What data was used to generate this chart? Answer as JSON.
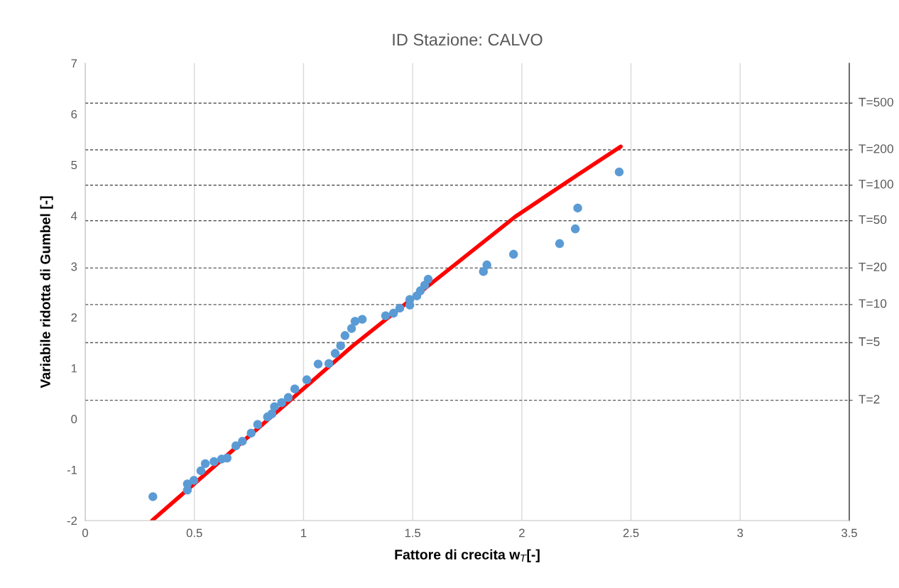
{
  "chart_data": {
    "type": "scatter",
    "title": "ID Stazione: CALVO",
    "xlabel": "Fattore di crecita w$_{T}$[-]",
    "ylabel": "Variabile ridotta di Gumbel [-]",
    "series": [
      {
        "color": "#5b9bd5",
        "marker": "circle",
        "x": [
          0.31,
          0.468,
          0.468,
          0.498,
          0.53,
          0.55,
          0.59,
          0.625,
          0.65,
          0.69,
          0.72,
          0.76,
          0.79,
          0.835,
          0.855,
          0.867,
          0.9,
          0.93,
          0.96,
          1.015,
          1.067,
          1.116,
          1.145,
          1.17,
          1.19,
          1.22,
          1.236,
          1.269,
          1.376,
          1.412,
          1.441,
          1.487,
          1.487,
          1.519,
          1.535,
          1.555,
          1.571,
          1.824,
          1.84,
          1.962,
          2.173,
          2.245,
          2.256,
          2.446
        ],
        "values": [
          -1.53,
          -1.4,
          -1.28,
          -1.21,
          -1.02,
          -0.88,
          -0.84,
          -0.79,
          -0.77,
          -0.53,
          -0.44,
          -0.28,
          -0.11,
          0.04,
          0.1,
          0.24,
          0.32,
          0.42,
          0.59,
          0.77,
          1.08,
          1.09,
          1.29,
          1.44,
          1.64,
          1.78,
          1.92,
          1.96,
          2.03,
          2.08,
          2.18,
          2.24,
          2.35,
          2.42,
          2.52,
          2.63,
          2.75,
          2.9,
          3.03,
          3.24,
          3.45,
          3.74,
          4.15,
          4.86
        ]
      },
      {
        "type": "line",
        "color": "#ff0000",
        "marker": "none",
        "line_style": "solid",
        "x": [
          0.306,
          1.226,
          1.97,
          2.258,
          2.453
        ],
        "values": [
          -2,
          1.44,
          3.98,
          4.81,
          5.36
        ]
      }
    ],
    "xlim": [
      0,
      3.5
    ],
    "xticks": [
      0,
      0.5,
      1,
      1.5,
      2,
      2.5,
      3,
      3.5
    ],
    "ylim": [
      -2,
      7
    ],
    "yticks": [
      -2,
      -1,
      0,
      1,
      2,
      3,
      4,
      5,
      6,
      7
    ],
    "ref_lines": [
      {
        "axis": "y",
        "value": 0.3665,
        "color": "#595959",
        "line_style": "dashed"
      },
      {
        "axis": "y",
        "value": 1.4999,
        "color": "#595959",
        "line_style": "dashed"
      },
      {
        "axis": "y",
        "value": 2.2504,
        "color": "#595959",
        "line_style": "dashed"
      },
      {
        "axis": "y",
        "value": 2.9702,
        "color": "#595959",
        "line_style": "dashed"
      },
      {
        "axis": "y",
        "value": 3.9019,
        "color": "#595959",
        "line_style": "dashed"
      },
      {
        "axis": "y",
        "value": 4.6001,
        "color": "#595959",
        "line_style": "dashed"
      },
      {
        "axis": "y",
        "value": 5.2958,
        "color": "#595959",
        "line_style": "dashed"
      },
      {
        "axis": "y",
        "value": 6.2136,
        "color": "#595959",
        "line_style": "dashed"
      }
    ],
    "annotations": [
      "T=2",
      "T=5",
      "T=10",
      "T=20",
      "T=50",
      "T=100",
      "T=200",
      "T=500"
    ],
    "grid": "x",
    "legend": false
  }
}
